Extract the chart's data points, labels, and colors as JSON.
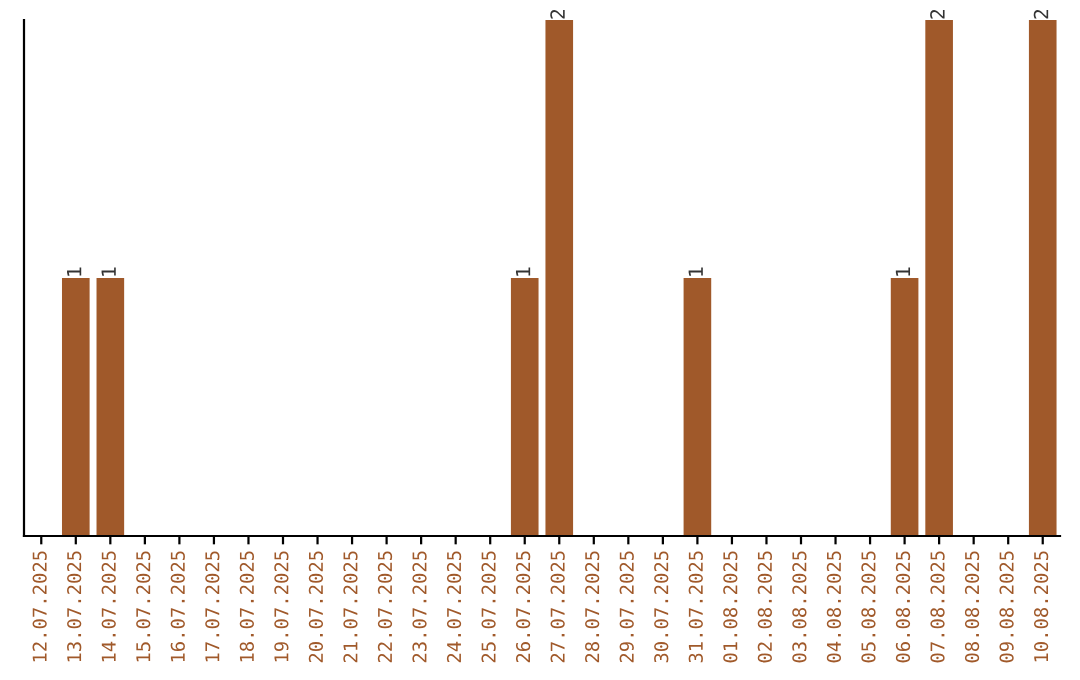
{
  "chart_data": {
    "type": "bar",
    "categories": [
      "12.07.2025",
      "13.07.2025",
      "14.07.2025",
      "15.07.2025",
      "16.07.2025",
      "17.07.2025",
      "18.07.2025",
      "19.07.2025",
      "20.07.2025",
      "21.07.2025",
      "22.07.2025",
      "23.07.2025",
      "24.07.2025",
      "25.07.2025",
      "26.07.2025",
      "27.07.2025",
      "28.07.2025",
      "29.07.2025",
      "30.07.2025",
      "31.07.2025",
      "01.08.2025",
      "02.08.2025",
      "03.08.2025",
      "04.08.2025",
      "05.08.2025",
      "06.08.2025",
      "07.08.2025",
      "08.08.2025",
      "09.08.2025",
      "10.08.2025"
    ],
    "values": [
      0,
      1,
      1,
      0,
      0,
      0,
      0,
      0,
      0,
      0,
      0,
      0,
      0,
      0,
      1,
      2,
      0,
      0,
      0,
      1,
      0,
      0,
      0,
      0,
      0,
      1,
      2,
      0,
      0,
      2
    ],
    "value_labels": [
      null,
      "1",
      "1",
      null,
      null,
      null,
      null,
      null,
      null,
      null,
      null,
      null,
      null,
      null,
      "1",
      "2",
      null,
      null,
      null,
      "1",
      null,
      null,
      null,
      null,
      null,
      "1",
      "2",
      null,
      null,
      "2"
    ],
    "color": "#a0592a",
    "grid": false,
    "legend": false
  }
}
